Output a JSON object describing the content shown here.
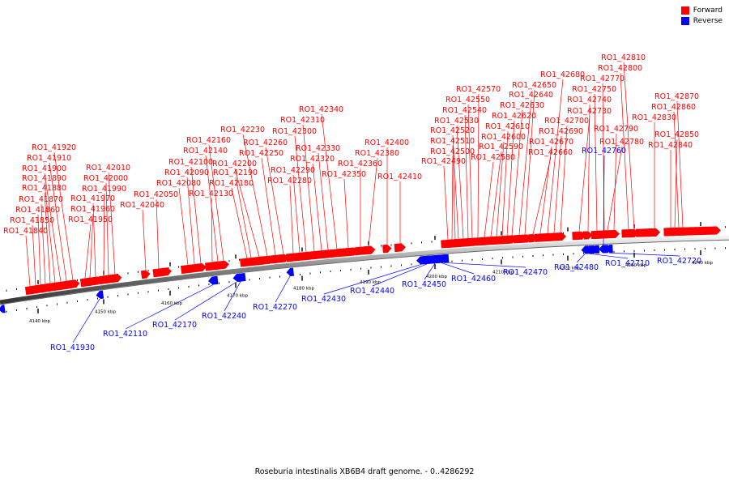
{
  "legend": {
    "forward_label": "Forward",
    "reverse_label": "Reverse",
    "forward_color": "#ff0000",
    "reverse_color": "#0000ff"
  },
  "caption": "Roseburia intestinalis XB6B4 draft genome. - 0..4286292",
  "ticks": [
    {
      "label": "4140 kbp"
    },
    {
      "label": "4150 kbp"
    },
    {
      "label": "4160 kbp"
    },
    {
      "label": "4170 kbp"
    },
    {
      "label": "4180 kbp"
    },
    {
      "label": "4190 kbp"
    },
    {
      "label": "4200 kbp"
    },
    {
      "label": "4210 kbp"
    },
    {
      "label": "4220 kbp"
    },
    {
      "label": "4230 kbp"
    },
    {
      "label": "4240 kbp"
    }
  ],
  "forward_genes": [
    "RO1_41840",
    "RO1_41850",
    "RO1_41860",
    "RO1_41870",
    "RO1_41880",
    "RO1_41890",
    "RO1_41900",
    "RO1_41910",
    "RO1_41920",
    "RO1_41950",
    "RO1_41960",
    "RO1_41970",
    "RO1_41990",
    "RO1_42000",
    "RO1_42010",
    "RO1_42040",
    "RO1_42050",
    "RO1_42080",
    "RO1_42090",
    "RO1_42100",
    "RO1_42130",
    "RO1_42140",
    "RO1_42160",
    "RO1_42180",
    "RO1_42190",
    "RO1_42200",
    "RO1_42230",
    "RO1_42250",
    "RO1_42260",
    "RO1_42280",
    "RO1_42290",
    "RO1_42300",
    "RO1_42310",
    "RO1_42320",
    "RO1_42330",
    "RO1_42340",
    "RO1_42350",
    "RO1_42360",
    "RO1_42380",
    "RO1_42400",
    "RO1_42410",
    "RO1_42490",
    "RO1_42500",
    "RO1_42510",
    "RO1_42520",
    "RO1_42530",
    "RO1_42540",
    "RO1_42550",
    "RO1_42570",
    "RO1_42580",
    "RO1_42590",
    "RO1_42600",
    "RO1_42610",
    "RO1_42620",
    "RO1_42630",
    "RO1_42640",
    "RO1_42650",
    "RO1_42660",
    "RO1_42670",
    "RO1_42680",
    "RO1_42690",
    "RO1_42700",
    "RO1_42730",
    "RO1_42740",
    "RO1_42750",
    "RO1_42770",
    "RO1_42780",
    "RO1_42790",
    "RO1_42800",
    "RO1_42810",
    "RO1_42830",
    "RO1_42840",
    "RO1_42850",
    "RO1_42860",
    "RO1_42870"
  ],
  "reverse_genes": [
    "RO1_41930",
    "RO1_42110",
    "RO1_42170",
    "RO1_42240",
    "RO1_42270",
    "RO1_42430",
    "RO1_42440",
    "RO1_42450",
    "RO1_42460",
    "RO1_42470",
    "RO1_42480",
    "RO1_42710",
    "RO1_42720",
    "RO1_42760"
  ]
}
